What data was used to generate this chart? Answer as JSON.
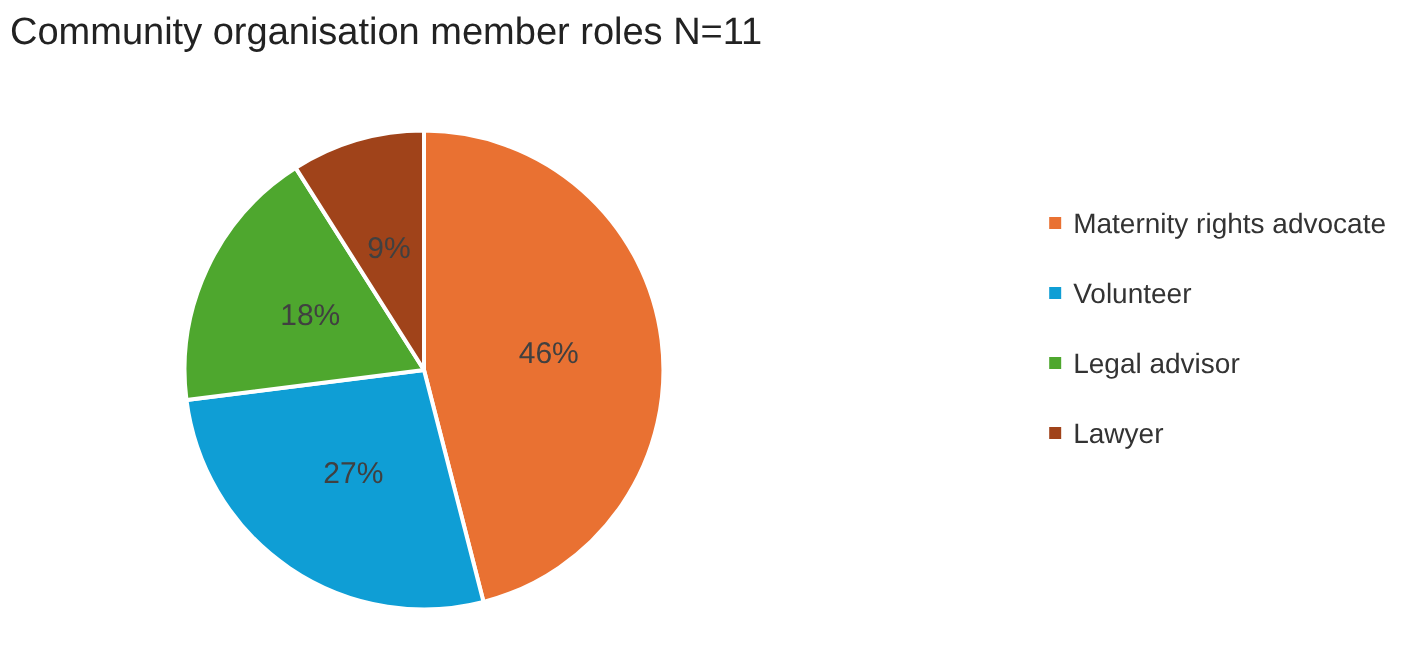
{
  "chart_data": {
    "type": "pie",
    "title": "Community organisation member roles N=11",
    "categories": [
      "Maternity rights advocate",
      "Volunteer",
      "Legal advisor",
      "Lawyer"
    ],
    "values": [
      46,
      27,
      18,
      9
    ],
    "value_labels": [
      "46%",
      "27%",
      "18%",
      "9%"
    ],
    "colors": [
      "#e97132",
      "#0f9ed5",
      "#4ea72e",
      "#a0431a"
    ],
    "legend": "right"
  }
}
